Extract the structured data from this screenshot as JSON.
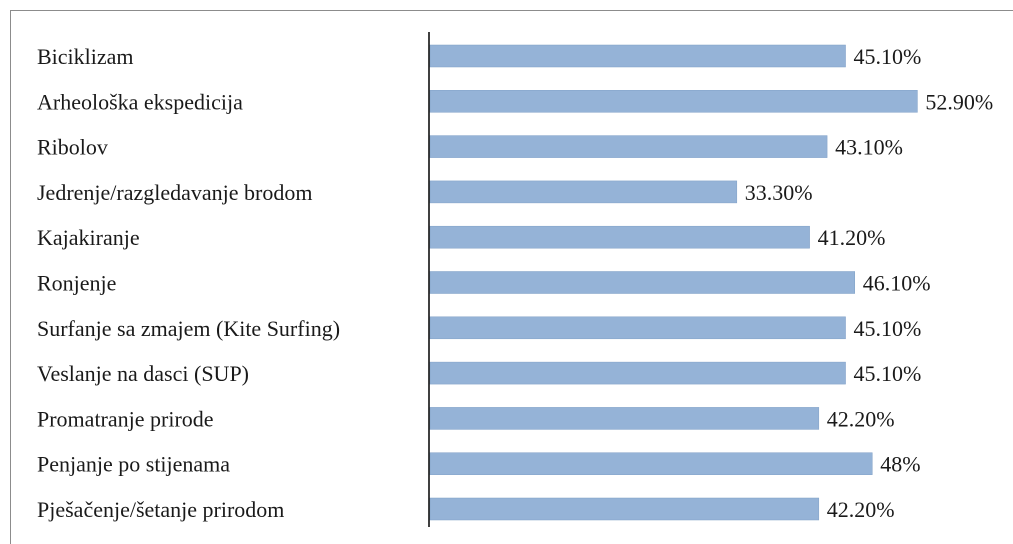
{
  "chart_data": {
    "type": "bar",
    "orientation": "horizontal",
    "categories": [
      "Biciklizam",
      "Arheološka ekspedicija",
      "Ribolov",
      "Jedrenje/razgledavanje brodom",
      "Kajakiranje",
      "Ronjenje",
      "Surfanje sa zmajem (Kite Surfing)",
      "Veslanje na dasci (SUP)",
      "Promatranje prirode",
      "Penjanje po stijenama",
      "Pješačenje/šetanje prirodom"
    ],
    "values": [
      45.1,
      52.9,
      43.1,
      33.3,
      41.2,
      46.1,
      45.1,
      45.1,
      42.2,
      48,
      42.2
    ],
    "value_labels": [
      "45.10%",
      "52.90%",
      "43.10%",
      "33.30%",
      "41.20%",
      "46.10%",
      "45.10%",
      "45.10%",
      "42.20%",
      "48%",
      "42.20%"
    ],
    "xlim": [
      0,
      53.4
    ],
    "grid": false,
    "legend": false,
    "bar_color": "#95b3d7",
    "bar_edge_color": "#7f9fc6",
    "axis_color": "#000000"
  }
}
